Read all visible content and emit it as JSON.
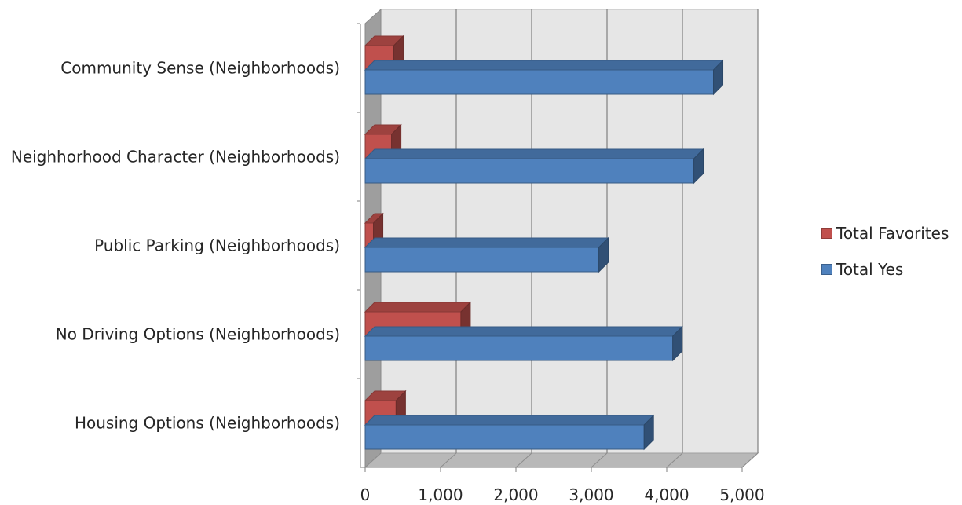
{
  "chart_data": {
    "type": "bar",
    "orientation": "horizontal",
    "three_d": true,
    "categories": [
      "Housing Options (Neighborhoods)",
      "No Driving Options (Neighborhoods)",
      "Public Parking (Neighborhoods)",
      "Neighhorhood Character (Neighborhoods)",
      "Community Sense (Neighborhoods)"
    ],
    "series": [
      {
        "name": "Total Yes",
        "color": "#4F81BD",
        "values": [
          3700,
          4080,
          3100,
          4360,
          4620
        ]
      },
      {
        "name": "Total Favorites",
        "color": "#C0504D",
        "values": [
          410,
          1270,
          110,
          350,
          380
        ]
      }
    ],
    "xlim": [
      0,
      5000
    ],
    "x_ticks": [
      "0",
      "1,000",
      "2,000",
      "3,000",
      "4,000",
      "5,000"
    ],
    "grid": true,
    "legend_position": "right",
    "title": "",
    "xlabel": "",
    "ylabel": ""
  },
  "legend": [
    {
      "name": "Total Favorites",
      "color": "#C0504D"
    },
    {
      "name": "Total Yes",
      "color": "#4F81BD"
    }
  ]
}
